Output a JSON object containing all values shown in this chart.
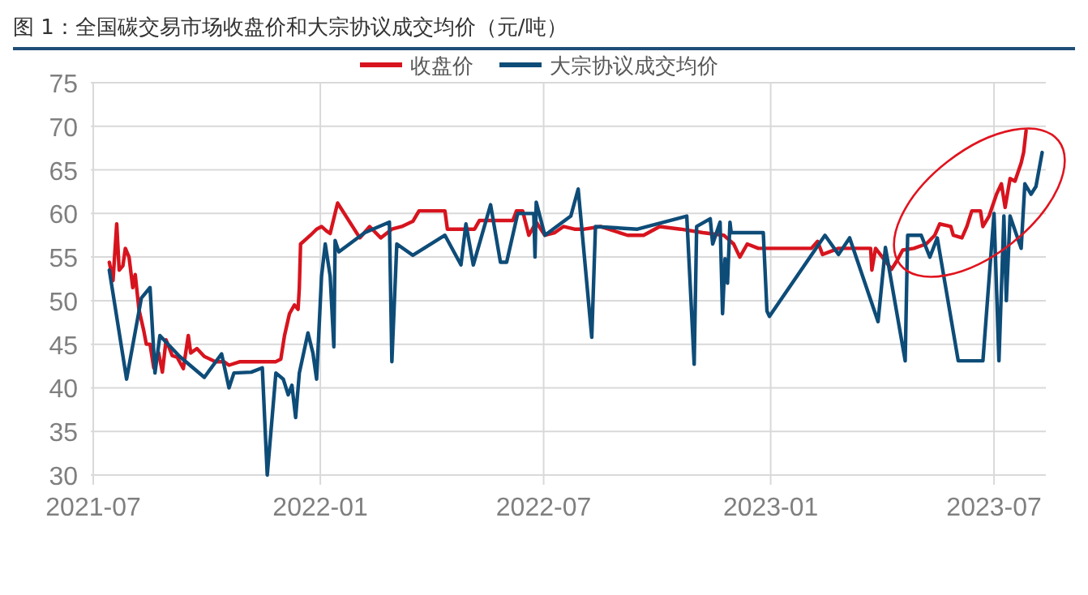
{
  "chart_data": {
    "type": "line",
    "title": "图 1：全国碳交易市场收盘价和大宗协议成交均价（元/吨）",
    "xlim": [
      "2021-06-29",
      "2023-08-12"
    ],
    "xticks": [
      "2021-07",
      "2022-01",
      "2022-07",
      "2023-01",
      "2023-07"
    ],
    "ylim": [
      30,
      75
    ],
    "yticks": [
      30,
      35,
      40,
      45,
      50,
      55,
      60,
      65,
      70,
      75
    ],
    "grid": true,
    "legend": "top",
    "line_style": "solid",
    "marker": "none",
    "series": [
      {
        "name": "收盘价",
        "color": "#d7141e",
        "x": [
          "2021-07-14",
          "2021-07-17",
          "2021-07-20",
          "2021-07-22",
          "2021-07-25",
          "2021-07-27",
          "2021-07-30",
          "2021-08-02",
          "2021-08-04",
          "2021-08-07",
          "2021-08-11",
          "2021-08-13",
          "2021-08-16",
          "2021-08-19",
          "2021-08-23",
          "2021-08-26",
          "2021-08-29",
          "2021-09-03",
          "2021-09-07",
          "2021-09-12",
          "2021-09-16",
          "2021-09-18",
          "2021-09-23",
          "2021-09-29",
          "2021-10-08",
          "2021-10-15",
          "2021-10-19",
          "2021-10-28",
          "2021-11-06",
          "2021-11-15",
          "2021-11-26",
          "2021-11-30",
          "2021-12-03",
          "2021-12-07",
          "2021-12-11",
          "2021-12-14",
          "2021-12-15",
          "2021-12-16",
          "2021-12-20",
          "2021-12-24",
          "2021-12-29",
          "2022-01-02",
          "2022-01-06",
          "2022-01-09",
          "2022-01-15",
          "2022-02-02",
          "2022-02-10",
          "2022-02-19",
          "2022-02-28",
          "2022-03-08",
          "2022-03-17",
          "2022-03-22",
          "2022-04-12",
          "2022-04-14",
          "2022-05-06",
          "2022-05-10",
          "2022-06-06",
          "2022-06-09",
          "2022-06-14",
          "2022-06-19",
          "2022-06-25",
          "2022-07-02",
          "2022-07-10",
          "2022-07-17",
          "2022-07-26",
          "2022-08-03",
          "2022-08-16",
          "2022-09-07",
          "2022-09-20",
          "2022-10-03",
          "2022-10-20",
          "2022-11-07",
          "2022-11-24",
          "2022-12-02",
          "2022-12-07",
          "2022-12-13",
          "2022-12-22",
          "2023-01-04",
          "2023-02-03",
          "2023-02-08",
          "2023-02-12",
          "2023-02-25",
          "2023-03-23",
          "2023-03-24",
          "2023-03-27",
          "2023-04-09",
          "2023-04-13",
          "2023-04-18",
          "2023-04-27",
          "2023-05-07",
          "2023-05-14",
          "2023-05-18",
          "2023-05-27",
          "2023-05-29",
          "2023-06-05",
          "2023-06-09",
          "2023-06-13",
          "2023-06-20",
          "2023-06-22",
          "2023-06-27",
          "2023-07-03",
          "2023-07-07",
          "2023-07-10",
          "2023-07-14",
          "2023-07-18",
          "2023-07-23",
          "2023-07-25",
          "2023-07-27"
        ],
        "values": [
          54.4,
          52.3,
          58.8,
          53.5,
          54,
          56,
          55,
          51.5,
          53,
          49,
          46.5,
          45,
          45,
          42.3,
          44,
          41.8,
          45.5,
          43.7,
          43.5,
          42.2,
          46,
          44,
          44.5,
          43.6,
          43,
          43,
          42.6,
          43,
          43,
          43,
          43,
          43.3,
          46,
          48.5,
          49.5,
          49,
          51.5,
          56.5,
          57,
          57.5,
          58.2,
          58.5,
          58,
          57.7,
          61.2,
          57.2,
          58.5,
          57.2,
          58.2,
          58.5,
          59.1,
          60.3,
          60.3,
          58.2,
          58.2,
          59.2,
          59.2,
          60.3,
          60.3,
          57.5,
          59,
          57.5,
          57.8,
          58.5,
          58.2,
          58.2,
          58.5,
          57.5,
          57.5,
          58.5,
          58.2,
          57.8,
          57.5,
          56.5,
          55,
          56.5,
          56,
          56,
          56,
          56.8,
          55.3,
          56,
          56,
          53.5,
          56,
          53.6,
          54.5,
          55.8,
          56,
          56.5,
          57.5,
          58.8,
          58.5,
          57.5,
          57.2,
          58.5,
          60.3,
          60.3,
          58.5,
          59.7,
          62.2,
          63.4,
          60.7,
          64,
          63.7,
          65.8,
          67,
          69.5
        ]
      },
      {
        "name": "大宗协议成交均价",
        "color": "#0e4c78",
        "x": [
          "2021-07-14",
          "2021-07-28",
          "2021-08-09",
          "2021-08-16",
          "2021-08-20",
          "2021-08-24",
          "2021-09-09",
          "2021-09-29",
          "2021-10-13",
          "2021-10-19",
          "2021-10-23",
          "2021-11-06",
          "2021-11-15",
          "2021-11-19",
          "2021-11-26",
          "2021-12-02",
          "2021-12-06",
          "2021-12-09",
          "2021-12-12",
          "2021-12-15",
          "2021-12-22",
          "2021-12-26",
          "2021-12-29",
          "2022-01-02",
          "2022-01-05",
          "2022-01-09",
          "2022-01-12",
          "2022-01-13",
          "2022-01-16",
          "2022-02-06",
          "2022-02-26",
          "2022-02-28",
          "2022-03-04",
          "2022-03-17",
          "2022-04-12",
          "2022-04-25",
          "2022-04-29",
          "2022-05-05",
          "2022-05-19",
          "2022-05-27",
          "2022-06-01",
          "2022-06-10",
          "2022-06-23",
          "2022-06-24",
          "2022-06-25",
          "2022-07-02",
          "2022-07-23",
          "2022-07-29",
          "2022-08-09",
          "2022-08-12",
          "2022-09-15",
          "2022-10-25",
          "2022-10-31",
          "2022-11-02",
          "2022-11-13",
          "2022-11-15",
          "2022-11-21",
          "2022-11-23",
          "2022-11-25",
          "2022-11-27",
          "2022-11-29",
          "2022-11-30",
          "2022-12-18",
          "2022-12-26",
          "2022-12-29",
          "2022-12-31",
          "2023-02-14",
          "2023-02-25",
          "2023-03-06",
          "2023-03-29",
          "2023-04-04",
          "2023-04-20",
          "2023-04-22",
          "2023-05-03",
          "2023-05-10",
          "2023-05-16",
          "2023-06-02",
          "2023-06-22",
          "2023-07-01",
          "2023-07-05",
          "2023-07-09",
          "2023-07-11",
          "2023-07-14",
          "2023-07-23",
          "2023-07-26",
          "2023-07-31",
          "2023-08-04",
          "2023-08-09"
        ],
        "values": [
          53.5,
          41,
          50.3,
          51.5,
          41.7,
          46,
          43.6,
          41.2,
          43.9,
          40,
          41.7,
          41.8,
          42.3,
          30,
          41.7,
          41,
          39.2,
          40.3,
          36.6,
          41.7,
          46.3,
          44,
          41,
          52.8,
          56.5,
          52.8,
          44.7,
          56.9,
          55.6,
          57.8,
          59,
          43,
          56.5,
          55.2,
          57.5,
          54.1,
          58.8,
          54.1,
          61,
          54.4,
          54.4,
          60,
          60,
          55,
          61.3,
          57.5,
          59.7,
          62.8,
          45.8,
          58.5,
          58.2,
          59.7,
          42.7,
          58.5,
          59.4,
          56.5,
          59,
          48.5,
          54.8,
          52,
          59,
          57.8,
          57.8,
          57.8,
          48.8,
          48.2,
          57.5,
          55.3,
          57.2,
          47.6,
          56.1,
          43.1,
          57.5,
          57.5,
          55,
          57.2,
          43.1,
          43.1,
          60,
          43.1,
          59.7,
          50,
          59.7,
          56,
          63.4,
          62.2,
          63.1,
          67
        ]
      }
    ]
  }
}
